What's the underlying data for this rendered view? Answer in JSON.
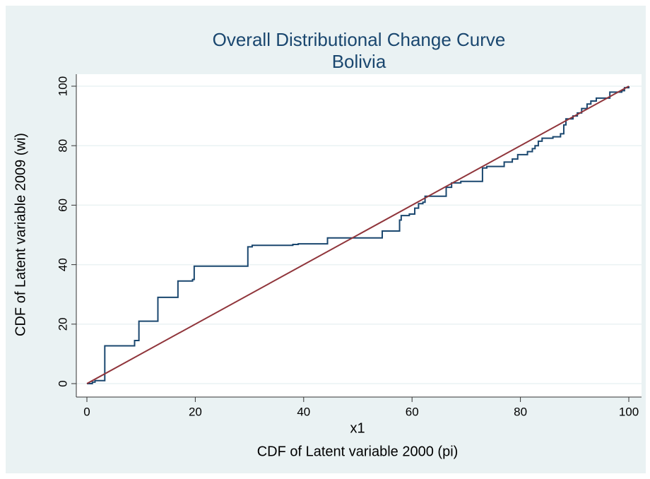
{
  "chart_data": {
    "type": "line",
    "title": "Overall Distributional Change Curve",
    "subtitle": "Bolivia",
    "xlabel": "x1",
    "caption": "CDF of Latent variable 2000 (pi)",
    "ylabel": "CDF of Latent variable 2009 (wi)",
    "xlim": [
      0,
      100
    ],
    "ylim": [
      0,
      100
    ],
    "xticks": [
      0,
      20,
      40,
      60,
      80,
      100
    ],
    "yticks": [
      0,
      20,
      40,
      60,
      80,
      100
    ],
    "grid": true,
    "series": [
      {
        "color": "#1a476f",
        "x": [
          0,
          1,
          1,
          1.5,
          1.5,
          3.3,
          3.3,
          8.8,
          8.8,
          9.6,
          9.6,
          13.1,
          13.1,
          16.8,
          16.8,
          19.5,
          19.5,
          19.8,
          19.8,
          29.7,
          29.7,
          30.5,
          30.5,
          38,
          38,
          39,
          39,
          44.4,
          44.4,
          54.5,
          54.5,
          57.7,
          57.7,
          58,
          58,
          59.5,
          59.5,
          60.5,
          60.5,
          61.2,
          61.2,
          62,
          62,
          62.4,
          62.4,
          66.3,
          66.3,
          67.3,
          67.3,
          69,
          69,
          73,
          73,
          73.8,
          73.8,
          77,
          77,
          78.5,
          78.5,
          79.5,
          79.5,
          81.3,
          81.3,
          82.2,
          82.2,
          82.7,
          82.7,
          83.3,
          83.3,
          84,
          84,
          86,
          86,
          87.4,
          87.4,
          88,
          88,
          88.4,
          88.4,
          89.7,
          89.7,
          90.5,
          90.5,
          91.3,
          91.3,
          92.3,
          92.3,
          93,
          93,
          94,
          94,
          96.5,
          96.5,
          98.7,
          98.7,
          99.2,
          99.2,
          100,
          100
        ],
        "values": [
          0,
          0,
          0.5,
          0.5,
          1,
          1,
          12.7,
          12.7,
          14.5,
          14.5,
          21,
          21,
          29,
          29,
          34.5,
          34.5,
          35,
          35,
          39.5,
          39.5,
          46,
          46,
          46.5,
          46.5,
          46.8,
          46.8,
          47,
          47,
          49,
          49,
          51.3,
          51.3,
          55,
          55,
          56.5,
          56.5,
          57,
          57,
          59,
          59,
          60.5,
          60.5,
          61,
          61,
          63,
          63,
          66,
          66,
          67.5,
          67.5,
          68,
          68,
          72.5,
          72.5,
          73,
          73,
          74.5,
          74.5,
          75.5,
          75.5,
          77,
          77,
          78,
          78,
          79,
          79,
          80,
          80,
          81.5,
          81.5,
          82.5,
          82.5,
          83,
          83,
          84,
          84,
          87,
          87,
          89,
          89,
          90,
          90,
          91,
          91,
          92.5,
          92.5,
          94,
          94,
          95,
          95,
          96,
          96,
          98,
          98,
          98.5,
          98.5,
          99.5,
          99.5,
          100
        ]
      },
      {
        "color": "#90353b",
        "x": [
          0,
          100
        ],
        "values": [
          0,
          100
        ]
      }
    ]
  }
}
